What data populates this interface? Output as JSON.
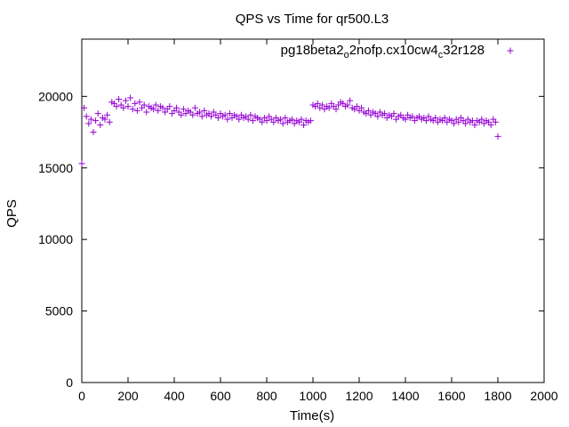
{
  "chart_data": {
    "type": "scatter",
    "title": "QPS vs Time for qr500.L3",
    "xlabel": "Time(s)",
    "ylabel": "QPS",
    "xlim": [
      0,
      2000
    ],
    "ylim": [
      0,
      24000
    ],
    "x_ticks": [
      0,
      200,
      400,
      600,
      800,
      1000,
      1200,
      1400,
      1600,
      1800,
      2000
    ],
    "y_ticks": [
      0,
      5000,
      10000,
      15000,
      20000
    ],
    "x_tick_labels": [
      "0",
      "200",
      "400",
      "600",
      "800",
      "1000",
      "1200",
      "1400",
      "1600",
      "1800",
      "2000"
    ],
    "y_tick_labels": [
      "0",
      "5000",
      "10000",
      "15000",
      "20000"
    ],
    "grid": false,
    "legend": {
      "position": "top-right",
      "parts": [
        "pg18beta2",
        "o",
        "2nofp.cx10cw4",
        "c",
        "32r128"
      ]
    },
    "marker": "+",
    "series": [
      {
        "name": "pg18beta2_o2nofp.cx10cw4_c32r128",
        "color": "#9400d3",
        "x": [
          0,
          10,
          20,
          30,
          40,
          50,
          60,
          70,
          80,
          90,
          100,
          110,
          120,
          130,
          140,
          150,
          160,
          170,
          180,
          190,
          200,
          210,
          220,
          230,
          240,
          250,
          260,
          270,
          280,
          290,
          300,
          310,
          320,
          330,
          340,
          350,
          360,
          370,
          380,
          390,
          400,
          410,
          420,
          430,
          440,
          450,
          460,
          470,
          480,
          490,
          500,
          510,
          520,
          530,
          540,
          550,
          560,
          570,
          580,
          590,
          600,
          610,
          620,
          630,
          640,
          650,
          660,
          670,
          680,
          690,
          700,
          710,
          720,
          730,
          740,
          750,
          760,
          770,
          780,
          790,
          800,
          810,
          820,
          830,
          840,
          850,
          860,
          870,
          880,
          890,
          900,
          910,
          920,
          930,
          940,
          950,
          960,
          970,
          980,
          990,
          1000,
          1010,
          1020,
          1030,
          1040,
          1050,
          1060,
          1070,
          1080,
          1090,
          1100,
          1110,
          1120,
          1130,
          1140,
          1150,
          1160,
          1170,
          1180,
          1190,
          1200,
          1210,
          1220,
          1230,
          1240,
          1250,
          1260,
          1270,
          1280,
          1290,
          1300,
          1310,
          1320,
          1330,
          1340,
          1350,
          1360,
          1370,
          1380,
          1390,
          1400,
          1410,
          1420,
          1430,
          1440,
          1450,
          1460,
          1470,
          1480,
          1490,
          1500,
          1510,
          1520,
          1530,
          1540,
          1550,
          1560,
          1570,
          1580,
          1590,
          1600,
          1610,
          1620,
          1630,
          1640,
          1650,
          1660,
          1670,
          1680,
          1690,
          1700,
          1710,
          1720,
          1730,
          1740,
          1750,
          1760,
          1770,
          1780,
          1790,
          1800
        ],
        "y": [
          15300,
          19200,
          18600,
          18100,
          18400,
          17500,
          18300,
          18800,
          18000,
          18500,
          18400,
          18700,
          18200,
          19600,
          19500,
          19300,
          19800,
          19400,
          19200,
          19700,
          19300,
          19900,
          19100,
          19500,
          19000,
          19600,
          19200,
          19400,
          18900,
          19300,
          19200,
          19100,
          19400,
          19000,
          19300,
          19200,
          18900,
          19100,
          19300,
          18800,
          19000,
          19200,
          18900,
          18700,
          19100,
          18800,
          19000,
          18900,
          18700,
          19200,
          18800,
          18900,
          18600,
          19000,
          18700,
          18800,
          18600,
          18900,
          18700,
          18500,
          18800,
          18600,
          18700,
          18400,
          18800,
          18500,
          18700,
          18600,
          18400,
          18700,
          18500,
          18600,
          18400,
          18700,
          18300,
          18600,
          18500,
          18400,
          18200,
          18500,
          18300,
          18600,
          18400,
          18200,
          18500,
          18300,
          18400,
          18100,
          18500,
          18200,
          18300,
          18400,
          18100,
          18300,
          18200,
          18400,
          18000,
          18300,
          18200,
          18300,
          19400,
          19300,
          19500,
          19200,
          19400,
          19100,
          19300,
          19200,
          19500,
          19300,
          19100,
          19400,
          19600,
          19500,
          19300,
          19400,
          19700,
          19200,
          19100,
          19300,
          19000,
          19200,
          18900,
          18800,
          19000,
          18700,
          18900,
          18800,
          18600,
          18900,
          18700,
          18800,
          18500,
          18700,
          18600,
          18800,
          18400,
          18600,
          18700,
          18500,
          18400,
          18700,
          18500,
          18600,
          18300,
          18500,
          18600,
          18400,
          18500,
          18300,
          18600,
          18400,
          18300,
          18500,
          18200,
          18400,
          18300,
          18500,
          18200,
          18400,
          18300,
          18100,
          18400,
          18200,
          18500,
          18300,
          18100,
          18400,
          18200,
          18300,
          18000,
          18300,
          18200,
          18400,
          18100,
          18300,
          18200,
          18000,
          18400,
          18200,
          17200
        ]
      }
    ]
  }
}
